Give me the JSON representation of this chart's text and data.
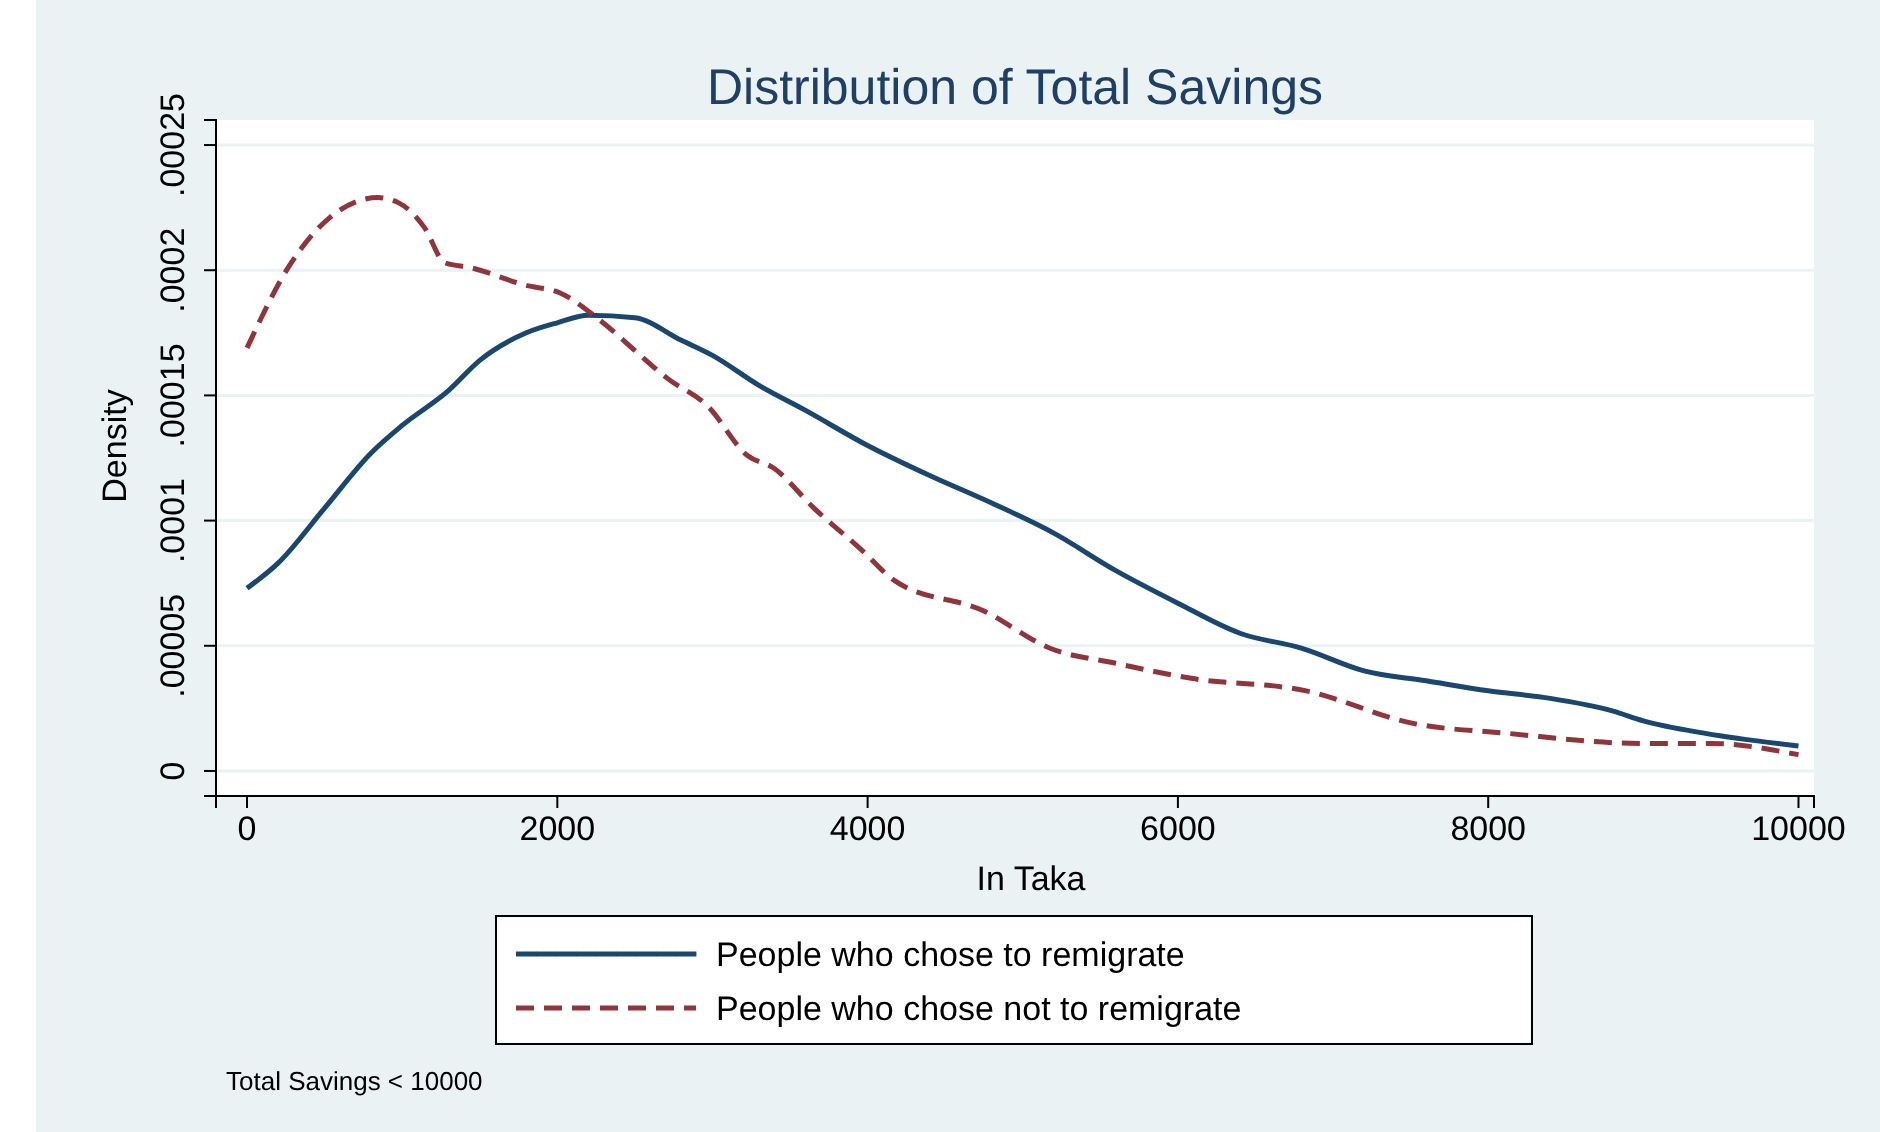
{
  "chart_data": {
    "type": "line",
    "title": "Distribution of Total Savings",
    "xlabel": "In Taka",
    "ylabel": "Density",
    "xlim": [
      -200,
      10100
    ],
    "xticks": [
      0,
      2000,
      4000,
      6000,
      8000,
      10000
    ],
    "ylim": [
      -1e-05,
      0.00026
    ],
    "yticks": [
      0,
      {
        "value": 5e-05,
        "label": ".00005"
      },
      {
        "value": 0.0001,
        "label": ".0001"
      },
      {
        "value": 0.00015,
        "label": ".00015"
      },
      {
        "value": 0.0002,
        "label": ".0002"
      },
      {
        "value": 0.00025,
        "label": ".00025"
      }
    ],
    "grid": "y",
    "legend": "bottom",
    "marker": "none",
    "annotations": [
      "Total Savings < 10000"
    ],
    "series": [
      {
        "name": "People who chose to remigrate",
        "color": "#1a476f",
        "line_style": "solid",
        "x": [
          0,
          200,
          500,
          800,
          1000,
          1300,
          1500,
          1800,
          2000,
          2200,
          2500,
          2800,
          3000,
          3300,
          3600,
          4000,
          4400,
          4800,
          5200,
          5600,
          6000,
          6400,
          6800,
          7200,
          7600,
          8000,
          8400,
          8800,
          9000,
          9400,
          10000
        ],
        "values": [
          7.3e-05,
          8.3e-05,
          0.000105,
          0.000127,
          0.000138,
          0.000152,
          0.000164,
          0.000175,
          0.000179,
          0.000182,
          0.000181,
          0.000172,
          0.000166,
          0.000154,
          0.000144,
          0.00013,
          0.000118,
          0.000107,
          9.5e-05,
          8e-05,
          6.7e-05,
          5.5e-05,
          4.9e-05,
          4e-05,
          3.6e-05,
          3.2e-05,
          2.9e-05,
          2.4e-05,
          2e-05,
          1.5e-05,
          1e-05
        ]
      },
      {
        "name": "People who chose not to remigrate",
        "color": "#90353b",
        "line_style": "dashed",
        "x": [
          0,
          275,
          533,
          845,
          975,
          1144,
          1274,
          1443,
          1795,
          2015,
          2275,
          2535,
          2705,
          2965,
          3225,
          3394,
          3654,
          3966,
          4174,
          4746,
          5176,
          5600,
          6086,
          6827,
          7516,
          8127,
          8986,
          9428,
          10000
        ],
        "values": [
          0.000169,
          0.000202,
          0.000221,
          0.000229,
          0.000227,
          0.000217,
          0.000203,
          0.000201,
          0.000194,
          0.000191,
          0.00018,
          0.000166,
          0.000157,
          0.000146,
          0.000126,
          0.000121,
          0.000105,
          8.8e-05,
          7.6e-05,
          6.4e-05,
          4.9e-05,
          4.3e-05,
          3.7e-05,
          3.2e-05,
          1.9e-05,
          1.5e-05,
          1.1e-05,
          1.1e-05,
          6.5e-06
        ]
      }
    ]
  }
}
